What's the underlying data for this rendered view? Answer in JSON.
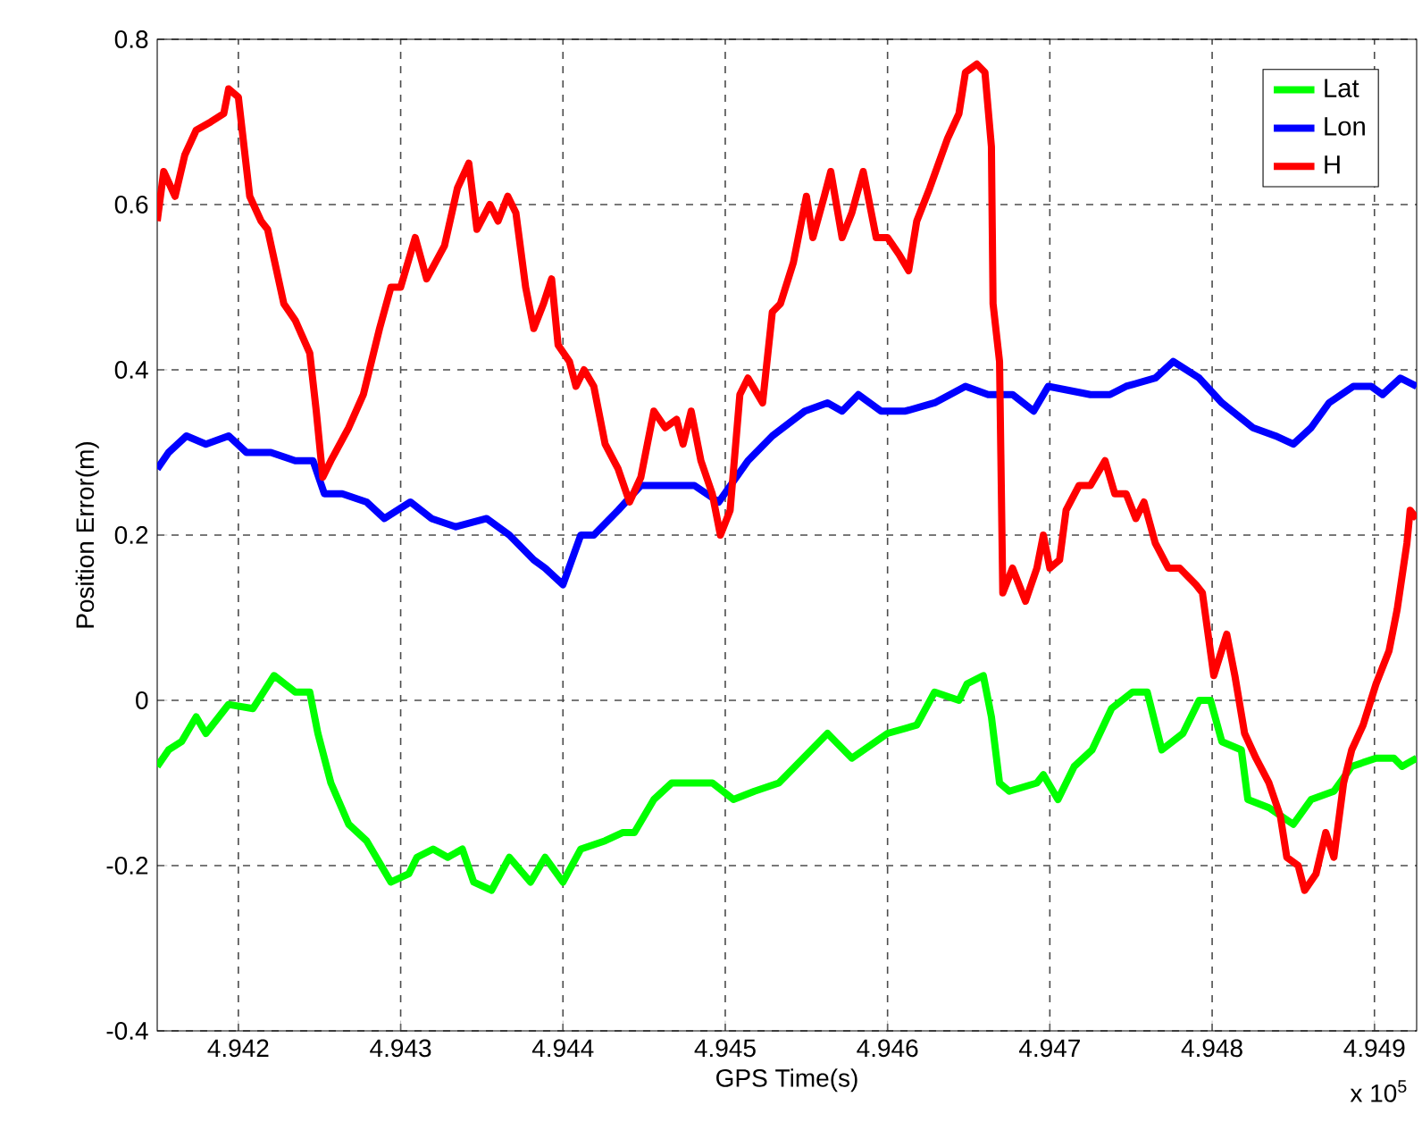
{
  "chart_data": {
    "type": "line",
    "xlabel": "GPS Time(s)",
    "ylabel": "Position Error(m)",
    "annotations": [
      "x 10$^{5}$"
    ],
    "xlim": [
      4.9415,
      4.94926
    ],
    "ylim": [
      -0.4,
      0.8
    ],
    "xticks": [
      4.942,
      4.943,
      4.944,
      4.945,
      4.946,
      4.947,
      4.948,
      4.949
    ],
    "yticks": [
      -0.4,
      -0.2,
      0,
      0.2,
      0.4,
      0.6,
      0.8
    ],
    "grid": true,
    "legend": "top right",
    "line_style": "solid",
    "marker": "none",
    "series": [
      {
        "name": "Lat",
        "color": "#00ff00",
        "x": [
          4.9415,
          4.94157,
          4.94165,
          4.94174,
          4.9418,
          4.94194,
          4.94209,
          4.94222,
          4.94235,
          4.94244,
          4.94249,
          4.94257,
          4.94268,
          4.94279,
          4.94294,
          4.94305,
          4.9431,
          4.9432,
          4.94329,
          4.94338,
          4.94345,
          4.94356,
          4.94367,
          4.9438,
          4.94389,
          4.944,
          4.94411,
          4.94426,
          4.94437,
          4.94444,
          4.94456,
          4.94467,
          4.94481,
          4.94492,
          4.94505,
          4.94518,
          4.94533,
          4.94548,
          4.94563,
          4.94578,
          4.946,
          4.94618,
          4.94629,
          4.94644,
          4.94649,
          4.94659,
          4.94664,
          4.94669,
          4.94675,
          4.94692,
          4.94696,
          4.94705,
          4.94715,
          4.94726,
          4.94738,
          4.94751,
          4.9476,
          4.94769,
          4.94782,
          4.94792,
          4.94799,
          4.94806,
          4.94818,
          4.94822,
          4.94835,
          4.9485,
          4.94861,
          4.94875,
          4.94886,
          4.94901,
          4.94912,
          4.94917,
          4.94926
        ],
        "values": [
          -0.08,
          -0.06,
          -0.05,
          -0.02,
          -0.04,
          -0.005,
          -0.01,
          0.03,
          0.01,
          0.01,
          -0.04,
          -0.1,
          -0.15,
          -0.17,
          -0.22,
          -0.21,
          -0.19,
          -0.18,
          -0.19,
          -0.18,
          -0.22,
          -0.23,
          -0.19,
          -0.22,
          -0.19,
          -0.22,
          -0.18,
          -0.17,
          -0.16,
          -0.16,
          -0.12,
          -0.1,
          -0.1,
          -0.1,
          -0.12,
          -0.11,
          -0.1,
          -0.07,
          -0.04,
          -0.07,
          -0.04,
          -0.03,
          0.01,
          0.0,
          0.02,
          0.03,
          -0.02,
          -0.1,
          -0.11,
          -0.1,
          -0.09,
          -0.12,
          -0.08,
          -0.06,
          -0.01,
          0.01,
          0.01,
          -0.06,
          -0.04,
          0.0,
          0.0,
          -0.05,
          -0.06,
          -0.12,
          -0.13,
          -0.15,
          -0.12,
          -0.11,
          -0.08,
          -0.07,
          -0.07,
          -0.08,
          -0.07
        ]
      },
      {
        "name": "Lon",
        "color": "#0000ff",
        "x": [
          4.9415,
          4.94157,
          4.94168,
          4.9418,
          4.94194,
          4.94205,
          4.9422,
          4.94235,
          4.94246,
          4.94253,
          4.94264,
          4.94279,
          4.9429,
          4.94306,
          4.94319,
          4.94334,
          4.94353,
          4.94367,
          4.94382,
          4.94389,
          4.944,
          4.94411,
          4.94419,
          4.94434,
          4.94448,
          4.94467,
          4.94481,
          4.94496,
          4.94514,
          4.94529,
          4.94549,
          4.94563,
          4.94572,
          4.94582,
          4.94596,
          4.94611,
          4.94629,
          4.94648,
          4.94662,
          4.94677,
          4.9469,
          4.94699,
          4.94725,
          4.94737,
          4.94747,
          4.94765,
          4.94776,
          4.94792,
          4.94806,
          4.94825,
          4.94839,
          4.9485,
          4.94861,
          4.94872,
          4.94887,
          4.94898,
          4.94905,
          4.94916,
          4.94926
        ],
        "values": [
          0.28,
          0.3,
          0.32,
          0.31,
          0.32,
          0.3,
          0.3,
          0.29,
          0.29,
          0.25,
          0.25,
          0.24,
          0.22,
          0.24,
          0.22,
          0.21,
          0.22,
          0.2,
          0.17,
          0.16,
          0.14,
          0.2,
          0.2,
          0.23,
          0.26,
          0.26,
          0.26,
          0.24,
          0.29,
          0.32,
          0.35,
          0.36,
          0.35,
          0.37,
          0.35,
          0.35,
          0.36,
          0.38,
          0.37,
          0.37,
          0.35,
          0.38,
          0.37,
          0.37,
          0.38,
          0.39,
          0.41,
          0.39,
          0.36,
          0.33,
          0.32,
          0.31,
          0.33,
          0.36,
          0.38,
          0.38,
          0.37,
          0.39,
          0.38
        ]
      },
      {
        "name": "H",
        "color": "#ff0000",
        "x": [
          4.9415,
          4.94154,
          4.94161,
          4.94167,
          4.94174,
          4.94183,
          4.94191,
          4.94194,
          4.942,
          4.94207,
          4.94214,
          4.94218,
          4.94228,
          4.94235,
          4.94244,
          4.94248,
          4.94252,
          4.94257,
          4.94268,
          4.94277,
          4.94287,
          4.94294,
          4.943,
          4.94309,
          4.94316,
          4.94327,
          4.94335,
          4.94342,
          4.94347,
          4.94355,
          4.9436,
          4.94366,
          4.94371,
          4.94377,
          4.94382,
          4.94388,
          4.94393,
          4.94397,
          4.94404,
          4.94408,
          4.94413,
          4.94419,
          4.94426,
          4.94434,
          4.94441,
          4.94448,
          4.94456,
          4.94463,
          4.9447,
          4.94474,
          4.94479,
          4.94485,
          4.94492,
          4.94497,
          4.94503,
          4.94509,
          4.94514,
          4.94523,
          4.94529,
          4.94534,
          4.94542,
          4.9455,
          4.94554,
          4.94561,
          4.94565,
          4.94572,
          4.94578,
          4.94585,
          4.94593,
          4.946,
          4.94607,
          4.94613,
          4.94618,
          4.94626,
          4.94637,
          4.94644,
          4.94648,
          4.94655,
          4.9466,
          4.94664,
          4.94665,
          4.94669,
          4.94671,
          4.94677,
          4.94685,
          4.94692,
          4.94696,
          4.947,
          4.94706,
          4.9471,
          4.94718,
          4.94725,
          4.94734,
          4.9474,
          4.94747,
          4.94753,
          4.94758,
          4.94765,
          4.94773,
          4.9478,
          4.9479,
          4.94794,
          4.94801,
          4.94809,
          4.94814,
          4.9482,
          4.94827,
          4.94835,
          4.94842,
          4.94846,
          4.94853,
          4.94857,
          4.94864,
          4.9487,
          4.94875,
          4.94881,
          4.94886,
          4.94893,
          4.94901,
          4.94909,
          4.94914,
          4.9492,
          4.94922,
          4.94926
        ],
        "values": [
          0.58,
          0.64,
          0.61,
          0.66,
          0.69,
          0.7,
          0.71,
          0.74,
          0.73,
          0.61,
          0.58,
          0.57,
          0.48,
          0.46,
          0.42,
          0.35,
          0.27,
          0.29,
          0.33,
          0.37,
          0.45,
          0.5,
          0.5,
          0.56,
          0.51,
          0.55,
          0.62,
          0.65,
          0.57,
          0.6,
          0.58,
          0.61,
          0.59,
          0.5,
          0.45,
          0.48,
          0.51,
          0.43,
          0.41,
          0.38,
          0.4,
          0.38,
          0.31,
          0.28,
          0.24,
          0.27,
          0.35,
          0.33,
          0.34,
          0.31,
          0.35,
          0.29,
          0.25,
          0.2,
          0.23,
          0.37,
          0.39,
          0.36,
          0.47,
          0.48,
          0.53,
          0.61,
          0.56,
          0.61,
          0.64,
          0.56,
          0.59,
          0.64,
          0.56,
          0.56,
          0.54,
          0.52,
          0.58,
          0.62,
          0.68,
          0.71,
          0.76,
          0.77,
          0.76,
          0.67,
          0.48,
          0.41,
          0.13,
          0.16,
          0.12,
          0.16,
          0.2,
          0.16,
          0.17,
          0.23,
          0.26,
          0.26,
          0.29,
          0.25,
          0.25,
          0.22,
          0.24,
          0.19,
          0.16,
          0.16,
          0.14,
          0.13,
          0.03,
          0.08,
          0.03,
          -0.04,
          -0.07,
          -0.1,
          -0.14,
          -0.19,
          -0.2,
          -0.23,
          -0.21,
          -0.16,
          -0.19,
          -0.1,
          -0.06,
          -0.03,
          0.02,
          0.06,
          0.11,
          0.19,
          0.23,
          0.22
        ]
      }
    ]
  }
}
